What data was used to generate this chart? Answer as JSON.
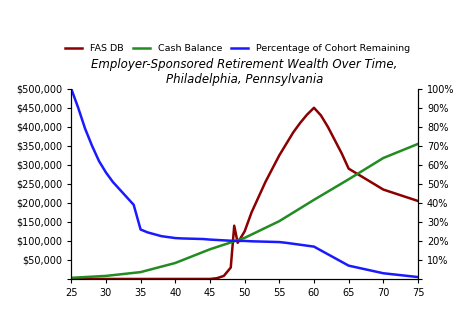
{
  "title": "Employer-Sponsored Retirement Wealth Over Time,\nPhiladelphia, Pennsylvania",
  "x_ticks": [
    25,
    30,
    35,
    40,
    45,
    50,
    55,
    60,
    65,
    70,
    75
  ],
  "xlim": [
    25,
    75
  ],
  "ylim_left": [
    0,
    500000
  ],
  "ylim_right": [
    0,
    1.0
  ],
  "yticks_left": [
    0,
    50000,
    100000,
    150000,
    200000,
    250000,
    300000,
    350000,
    400000,
    450000,
    500000
  ],
  "ytick_labels_left": [
    "",
    "$50,000",
    "$100,000",
    "$150,000",
    "$200,000",
    "$250,000",
    "$300,000",
    "$350,000",
    "$400,000",
    "$450,000",
    "$500,000"
  ],
  "ytick_labels_right": [
    "",
    "10%",
    "20%",
    "30%",
    "40%",
    "50%",
    "60%",
    "70%",
    "80%",
    "90%",
    "100%"
  ],
  "fas_db": {
    "label": "FAS DB",
    "color": "#8B0000",
    "linewidth": 1.8,
    "x": [
      25,
      30,
      35,
      40,
      44,
      45,
      46,
      47,
      48,
      48.5,
      49,
      49.5,
      50,
      50.5,
      51,
      52,
      53,
      54,
      55,
      56,
      57,
      58,
      59,
      60,
      61,
      62,
      63,
      64,
      65,
      70,
      75
    ],
    "y": [
      0,
      0,
      0,
      0,
      0,
      0,
      2000,
      8000,
      30000,
      140000,
      95000,
      110000,
      125000,
      150000,
      175000,
      215000,
      255000,
      290000,
      325000,
      355000,
      385000,
      410000,
      432000,
      450000,
      430000,
      400000,
      365000,
      330000,
      290000,
      235000,
      205000
    ]
  },
  "cash_balance": {
    "label": "Cash Balance",
    "color": "#228B22",
    "linewidth": 1.8,
    "x": [
      25,
      30,
      35,
      40,
      45,
      50,
      55,
      60,
      65,
      70,
      75
    ],
    "y": [
      3000,
      8000,
      18000,
      42000,
      78000,
      108000,
      152000,
      208000,
      262000,
      318000,
      355000
    ]
  },
  "pct_cohort": {
    "label": "Percentage of Cohort Remaining",
    "color": "#1a1aff",
    "linewidth": 1.8,
    "x": [
      25,
      26,
      27,
      28,
      29,
      30,
      31,
      32,
      33,
      34,
      35,
      36,
      37,
      38,
      39,
      40,
      41,
      42,
      43,
      44,
      45,
      46,
      47,
      48,
      49,
      50,
      51,
      52,
      53,
      54,
      55,
      56,
      57,
      58,
      59,
      60,
      61,
      62,
      63,
      64,
      65,
      70,
      75
    ],
    "y": [
      1.0,
      0.9,
      0.79,
      0.7,
      0.62,
      0.56,
      0.51,
      0.47,
      0.43,
      0.39,
      0.26,
      0.245,
      0.235,
      0.225,
      0.22,
      0.215,
      0.213,
      0.212,
      0.211,
      0.21,
      0.207,
      0.205,
      0.203,
      0.201,
      0.2,
      0.2,
      0.198,
      0.197,
      0.196,
      0.195,
      0.194,
      0.19,
      0.185,
      0.18,
      0.175,
      0.17,
      0.15,
      0.13,
      0.11,
      0.09,
      0.07,
      0.03,
      0.01
    ]
  },
  "background_color": "#ffffff"
}
